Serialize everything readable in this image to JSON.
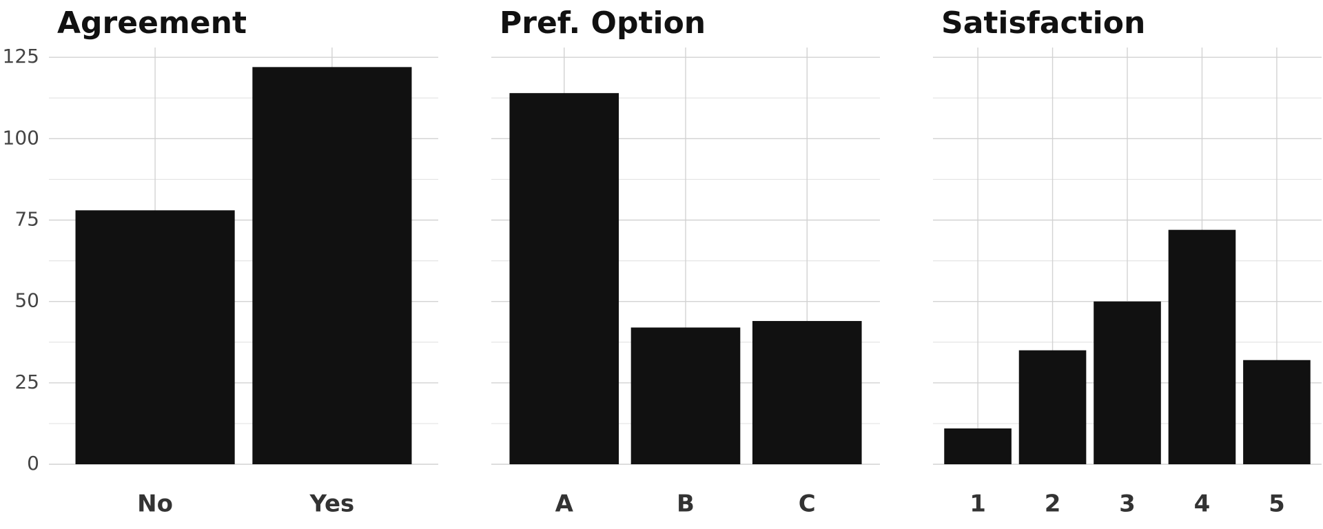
{
  "chart_data": [
    {
      "type": "bar",
      "title": "Agreement",
      "categories": [
        "No",
        "Yes"
      ],
      "values": [
        78,
        122
      ],
      "color": "#111111",
      "ylim": [
        0,
        128
      ],
      "yticks": [
        0,
        25,
        50,
        75,
        100,
        125
      ],
      "grid": true
    },
    {
      "type": "bar",
      "title": "Pref. Option",
      "categories": [
        "A",
        "B",
        "C"
      ],
      "values": [
        114,
        42,
        44
      ],
      "color": "#111111",
      "ylim": [
        0,
        128
      ],
      "yticks": [
        0,
        25,
        50,
        75,
        100,
        125
      ],
      "grid": true
    },
    {
      "type": "bar",
      "title": "Satisfaction",
      "categories": [
        "1",
        "2",
        "3",
        "4",
        "5"
      ],
      "values": [
        11,
        35,
        50,
        72,
        32
      ],
      "color": "#111111",
      "ylim": [
        0,
        128
      ],
      "yticks": [
        0,
        25,
        50,
        75,
        100,
        125
      ],
      "grid": true
    }
  ]
}
